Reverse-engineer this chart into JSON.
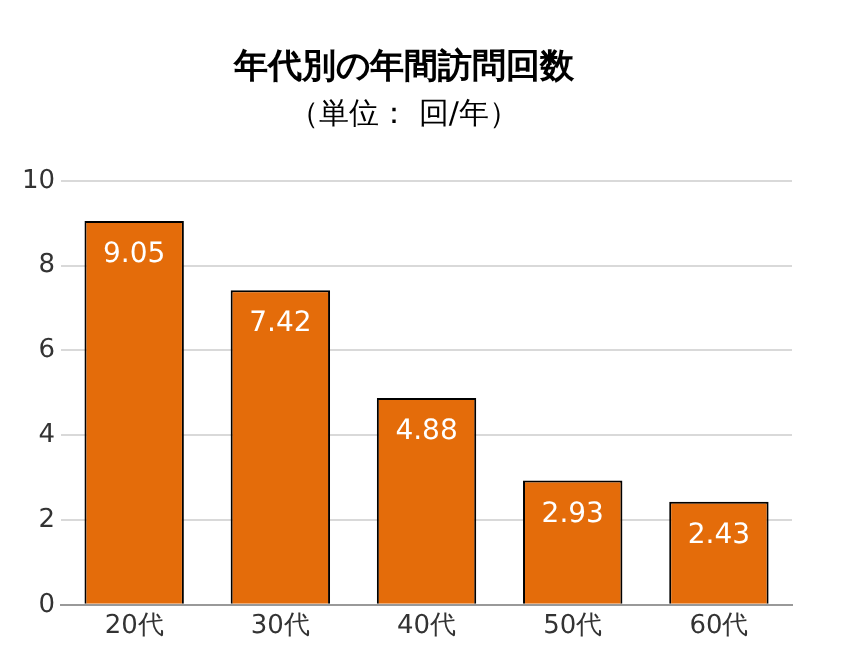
{
  "chart_data": {
    "type": "bar",
    "title": "年代別の年間訪問回数",
    "subtitle": "（単位： 回/年）",
    "categories": [
      "20代",
      "30代",
      "40代",
      "50代",
      "60代"
    ],
    "values": [
      9.05,
      7.42,
      4.88,
      2.93,
      2.43
    ],
    "color": "#e46c0a",
    "ylim": [
      0,
      10
    ],
    "yticks": [
      0,
      2,
      4,
      6,
      8,
      10
    ],
    "grid": "y",
    "data_labels": true,
    "legend": false
  }
}
